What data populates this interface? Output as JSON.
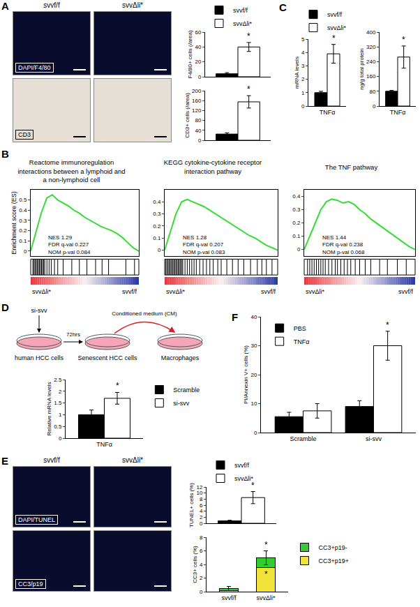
{
  "chart_data": [
    {
      "type": "bar",
      "ylabel": "F4/80+ cells (/area)",
      "categories": [
        null
      ],
      "ylim": [
        0,
        60
      ],
      "yticks": [
        0,
        20,
        40,
        60
      ],
      "legend": "top",
      "series": [
        {
          "name": "svvf/f",
          "color": "#000000",
          "values": [
            4
          ],
          "errors": [
            1.5
          ]
        },
        {
          "name": "svvΔli*",
          "color": "#ffffff",
          "values": [
            40
          ],
          "errors": [
            6
          ],
          "annotations": [
            "*"
          ]
        }
      ]
    },
    {
      "type": "bar",
      "ylabel": "CD3+ cells (/area)",
      "categories": [
        null
      ],
      "ylim": [
        0,
        200
      ],
      "yticks": [
        0,
        40,
        80,
        120,
        160,
        200
      ],
      "series": [
        {
          "color": "#000000",
          "values": [
            25
          ],
          "errors": [
            5
          ]
        },
        {
          "color": "#ffffff",
          "values": [
            155
          ],
          "errors": [
            25
          ],
          "annotations": [
            "*"
          ]
        }
      ]
    },
    {
      "type": "line",
      "panel": "B",
      "title": "Reactome immunoregulation interactions between a lymphoid and a non-lymphoid cell",
      "ylabel": "Enrichment score (ES)",
      "x": [
        0,
        5,
        10,
        15,
        20,
        25,
        30,
        35,
        40,
        45,
        50,
        55,
        60,
        65,
        70,
        75,
        80,
        85,
        90,
        95,
        100
      ],
      "values": [
        0,
        0.2,
        0.38,
        0.52,
        0.55,
        0.5,
        0.47,
        0.44,
        0.4,
        0.37,
        0.33,
        0.3,
        0.27,
        0.24,
        0.22,
        0.2,
        0.17,
        0.13,
        0.08,
        0.03,
        0
      ],
      "color": "#33dd33",
      "hits": [
        2,
        3,
        4,
        5,
        6,
        7,
        8,
        9,
        10,
        11,
        12,
        13,
        15,
        17,
        19,
        22,
        25,
        30,
        38,
        45,
        52,
        60,
        66,
        72,
        88,
        96
      ],
      "stats": [
        "NES 1.29",
        "FDR q-val 0.227",
        "NOM p-val 0.084"
      ],
      "group_labels": [
        "svvΔli*",
        "svvf/f"
      ],
      "xlim": [
        0,
        100
      ],
      "ylim": [
        -0.05,
        0.6
      ],
      "yticks": [
        0,
        0.1,
        0.2,
        0.3,
        0.4,
        0.5
      ],
      "tick_labels": "y"
    },
    {
      "type": "line",
      "title": "KEGG cytokine-cytokine receptor interaction pathway",
      "x": [
        0,
        5,
        10,
        15,
        20,
        25,
        30,
        35,
        40,
        45,
        50,
        55,
        60,
        65,
        70,
        75,
        80,
        85,
        90,
        95,
        100
      ],
      "values": [
        0,
        0.15,
        0.3,
        0.4,
        0.42,
        0.4,
        0.38,
        0.36,
        0.33,
        0.3,
        0.27,
        0.24,
        0.21,
        0.18,
        0.15,
        0.12,
        0.1,
        0.07,
        0.04,
        0.02,
        0
      ],
      "color": "#33dd33",
      "hits": [
        1,
        2,
        3,
        4,
        5,
        6,
        7,
        8,
        9,
        10,
        11,
        12,
        13,
        14,
        15,
        16,
        18,
        20,
        22,
        24,
        26,
        28,
        31,
        34,
        37,
        40,
        43,
        47,
        50,
        55,
        60,
        65,
        70,
        76,
        82,
        86,
        90,
        95
      ],
      "stats": [
        "NES 1.28",
        "FDR q-val 0.207",
        "NOM p-val 0.083"
      ],
      "group_labels": [
        "svvΔli*",
        "svvf/f"
      ],
      "xlim": [
        0,
        100
      ],
      "ylim": [
        -0.05,
        0.5
      ],
      "yticks": [
        0,
        0.1,
        0.2,
        0.3,
        0.4
      ],
      "tick_labels": "y"
    },
    {
      "type": "line",
      "title": "The TNF pathway",
      "x": [
        0,
        5,
        10,
        15,
        20,
        25,
        30,
        35,
        40,
        45,
        50,
        55,
        60,
        65,
        70,
        75,
        80,
        85,
        90,
        95,
        100
      ],
      "values": [
        0,
        0.1,
        0.2,
        0.3,
        0.36,
        0.38,
        0.37,
        0.35,
        0.36,
        0.34,
        0.3,
        0.27,
        0.23,
        0.2,
        0.17,
        0.14,
        0.11,
        0.08,
        0.05,
        0.02,
        0
      ],
      "color": "#33dd33",
      "hits": [
        3,
        5,
        7,
        9,
        11,
        13,
        15,
        17,
        19,
        22,
        25,
        28,
        30,
        33,
        36,
        39,
        42,
        46,
        50,
        55,
        60,
        68,
        75,
        84,
        92
      ],
      "stats": [
        "NES 1.44",
        "FDR q-val 0.238",
        "NOM p-val 0.068"
      ],
      "group_labels": [
        "svvΔli*",
        "svvf/f"
      ],
      "xlim": [
        0,
        100
      ],
      "ylim": [
        -0.05,
        0.45
      ],
      "yticks": [
        0,
        0.1,
        0.2,
        0.3,
        0.4
      ],
      "tick_labels": "y"
    },
    {
      "type": "bar",
      "panel": "C",
      "ylabel": "mRNA levels",
      "categories": [
        "TNFα"
      ],
      "ylim": [
        0,
        5
      ],
      "yticks": [
        0,
        1,
        2,
        3,
        4,
        5
      ],
      "legend": "top",
      "series": [
        {
          "name": "svvf/f",
          "color": "#000000",
          "values": [
            1
          ],
          "errors": [
            0.1
          ]
        },
        {
          "name": "svvΔli*",
          "color": "#ffffff",
          "values": [
            3.9
          ],
          "errors": [
            0.7
          ],
          "annotations": [
            "*"
          ]
        }
      ]
    },
    {
      "type": "bar",
      "ylabel": "ng/g total protein",
      "categories": [
        "TNFα"
      ],
      "ylim": [
        0,
        400
      ],
      "yticks": [
        0,
        80,
        160,
        240,
        320,
        400
      ],
      "series": [
        {
          "color": "#000000",
          "values": [
            80
          ],
          "errors": [
            5
          ]
        },
        {
          "color": "#ffffff",
          "values": [
            265
          ],
          "errors": [
            60
          ],
          "annotations": [
            "*"
          ]
        }
      ]
    },
    {
      "type": "bar",
      "ylabel": "Relative mRNA levels",
      "categories": [
        "TNFα"
      ],
      "ylim": [
        0,
        2.5
      ],
      "yticks": [
        0,
        0.5,
        1,
        1.5,
        2,
        2.5
      ],
      "legend": "right",
      "series": [
        {
          "name": "Scramble",
          "color": "#000000",
          "values": [
            1
          ],
          "errors": [
            0.2
          ]
        },
        {
          "name": "si-svv",
          "color": "#ffffff",
          "values": [
            1.7
          ],
          "errors": [
            0.25
          ],
          "annotations": [
            "*"
          ]
        }
      ]
    },
    {
      "type": "bar",
      "ylabel": "TUNEL+ cells (%)",
      "categories": [
        null
      ],
      "ylim": [
        0,
        12
      ],
      "yticks": [
        0,
        2,
        4,
        6,
        8,
        10,
        12
      ],
      "legend": "top",
      "series": [
        {
          "name": "svvf/f",
          "color": "#000000",
          "values": [
            0.8
          ],
          "errors": [
            0.2
          ]
        },
        {
          "name": "svvΔli*",
          "color": "#ffffff",
          "values": [
            8.5
          ],
          "errors": [
            2
          ],
          "annotations": [
            "*"
          ]
        }
      ]
    },
    {
      "type": "bar",
      "ylabel": "CC3+ cells (%)",
      "categories": [
        "svvf/f",
        "svvΔli*"
      ],
      "stacked": true,
      "ylim": [
        0,
        8
      ],
      "yticks": [
        0,
        2,
        4,
        6,
        8
      ],
      "legend": "right",
      "series": [
        {
          "name": "CC3+p19+",
          "color": "#f2e33a",
          "values": [
            0.2,
            3.5
          ],
          "annotations": [
            null,
            "*"
          ]
        },
        {
          "name": "CC3+p19-",
          "color": "#33cc33",
          "values": [
            0.3,
            1.5
          ],
          "errors": [
            0.3,
            1
          ],
          "annotations": [
            null,
            "*"
          ]
        }
      ]
    },
    {
      "type": "bar",
      "panel": "F",
      "ylabel": "PI/Annexin V+ cells (%)",
      "categories": [
        "Scramble",
        "si-svv"
      ],
      "ylim": [
        0,
        40
      ],
      "yticks": [
        0,
        10,
        20,
        30,
        40
      ],
      "legend": "top left",
      "series": [
        {
          "name": "PBS",
          "color": "#000000",
          "values": [
            5.5,
            9
          ],
          "errors": [
            1.5,
            2
          ]
        },
        {
          "name": "TNFα",
          "color": "#ffffff",
          "values": [
            7.5,
            30
          ],
          "errors": [
            2.5,
            5
          ],
          "annotations": [
            null,
            "*"
          ]
        }
      ]
    }
  ],
  "image_panels": [
    {
      "panel": "A",
      "column_labels": [
        "svvf/f",
        "svvΔli*"
      ],
      "rows": [
        {
          "stain": "DAPI/F4/80",
          "color": "#0a0c2e"
        },
        {
          "stain": "CD3",
          "color": "#e6dfd6"
        }
      ]
    },
    {
      "panel": "E",
      "column_labels": [
        "svvf/f",
        "svvΔli*"
      ],
      "rows": [
        {
          "stain": "DAPI/TUNEL",
          "color": "#0a0c2e"
        },
        {
          "stain": "CC3/p19",
          "color": "#0a0c2e"
        }
      ]
    }
  ],
  "diagram": {
    "panel": "D",
    "treatment": "si-svv",
    "interval": "72hrs",
    "transfer": "Conditioned medium (CM)",
    "stages": [
      "human HCC cells",
      "Senescent HCC cells",
      "Macrophages"
    ]
  }
}
